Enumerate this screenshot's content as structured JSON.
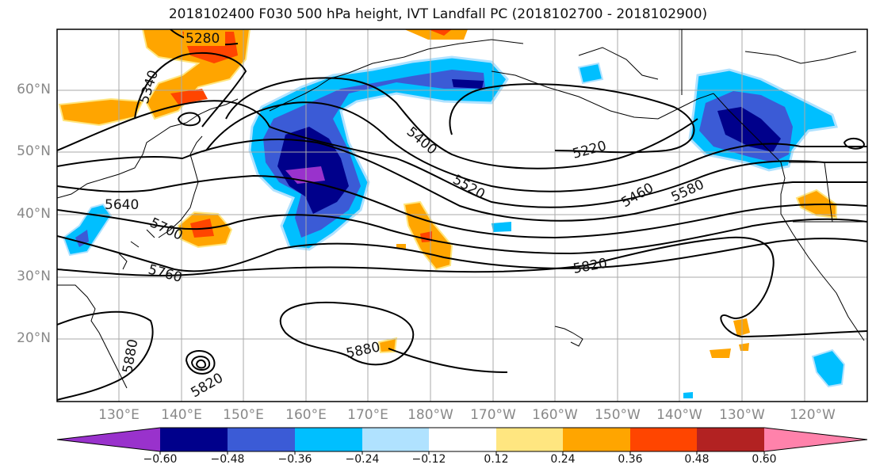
{
  "title": "2018102400 F030 500 hPa height, IVT Landfall PC (2018102700 - 2018102900)",
  "lat_labels": [
    "60°N",
    "50°N",
    "40°N",
    "30°N",
    "20°N"
  ],
  "lon_labels": [
    "130°E",
    "140°E",
    "150°E",
    "160°E",
    "170°E",
    "180°W",
    "170°W",
    "160°W",
    "150°W",
    "140°W",
    "130°W",
    "120°W"
  ],
  "colorbar": {
    "tick_labels": [
      "−0.60",
      "−0.48",
      "−0.36",
      "−0.24",
      "−0.12",
      "0.12",
      "0.24",
      "0.36",
      "0.48",
      "0.60"
    ],
    "colors": [
      "#9932cc",
      "#00008b",
      "#3b5bd6",
      "#00bfff",
      "#b0e2ff",
      "#ffffff",
      "#ffe680",
      "#ffa500",
      "#ff4500",
      "#b22222",
      "#ff82ab"
    ]
  },
  "contour_labels": [
    "5280",
    "5340",
    "5400",
    "5520",
    "5220",
    "5460",
    "5580",
    "5640",
    "5700",
    "5760",
    "5820",
    "5880",
    "5880",
    "5820"
  ]
}
